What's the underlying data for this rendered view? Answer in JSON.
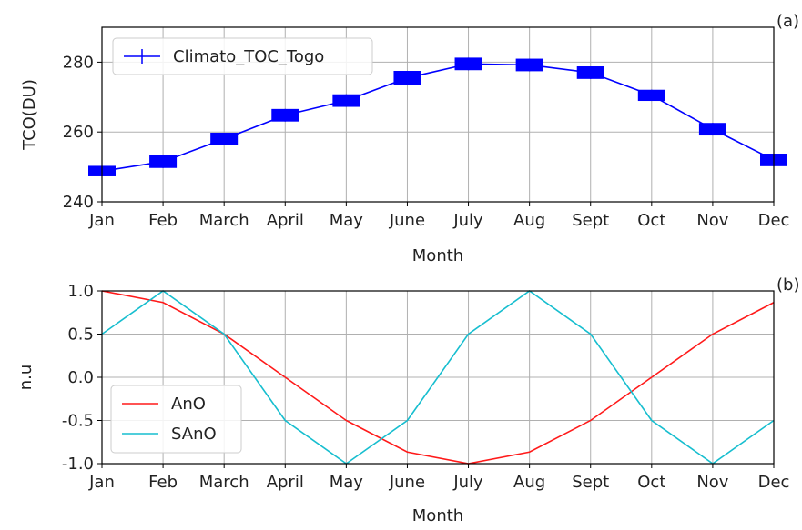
{
  "chart_data": [
    {
      "type": "line",
      "panel_label": "(a)",
      "categories": [
        "Jan",
        "Feb",
        "March",
        "April",
        "May",
        "June",
        "July",
        "Aug",
        "Sept",
        "Oct",
        "Nov",
        "Dec"
      ],
      "series": [
        {
          "name": "Climato_TOC_Togo",
          "values": [
            248.8,
            251.5,
            258.0,
            264.8,
            269.0,
            275.5,
            279.5,
            279.2,
            277.0,
            270.5,
            260.8,
            252.0
          ],
          "error": [
            1.5,
            1.8,
            1.8,
            1.8,
            1.8,
            2.0,
            1.8,
            1.8,
            1.8,
            1.6,
            1.8,
            1.8
          ],
          "color": "#0000ff"
        }
      ],
      "xlabel": "Month",
      "ylabel": "TCO(DU)",
      "ylim": [
        240,
        290
      ],
      "yticks": [
        240,
        260,
        280
      ],
      "grid": true,
      "legend_position": "top-left"
    },
    {
      "type": "line",
      "panel_label": "(b)",
      "categories": [
        "Jan",
        "Feb",
        "March",
        "April",
        "May",
        "June",
        "July",
        "Aug",
        "Sept",
        "Oct",
        "Nov",
        "Dec"
      ],
      "series": [
        {
          "name": "AnO",
          "values": [
            1.0,
            0.866,
            0.5,
            0.0,
            -0.5,
            -0.866,
            -1.0,
            -0.866,
            -0.5,
            0.0,
            0.5,
            0.866
          ],
          "color": "#ff1a1a"
        },
        {
          "name": "SAnO",
          "values": [
            0.5,
            1.0,
            0.5,
            -0.5,
            -1.0,
            -0.5,
            0.5,
            1.0,
            0.5,
            -0.5,
            -1.0,
            -0.5
          ],
          "color": "#17becf"
        }
      ],
      "xlabel": "Month",
      "ylabel": "n.u",
      "ylim": [
        -1.0,
        1.0
      ],
      "yticks": [
        "-1.0",
        "-0.5",
        "0.0",
        "0.5",
        "1.0"
      ],
      "grid": true,
      "legend_position": "bottom-left"
    }
  ]
}
